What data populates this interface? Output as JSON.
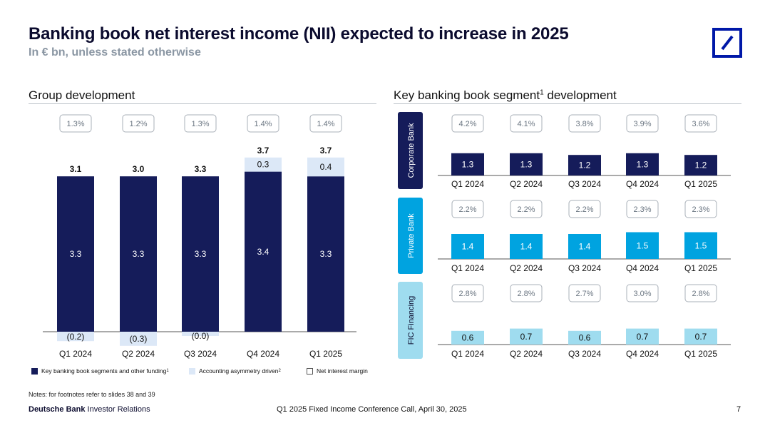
{
  "header": {
    "title": "Banking book net interest income (NII) expected to increase in 2025",
    "subtitle": "In € bn, unless stated otherwise"
  },
  "colors": {
    "navy": "#151c5a",
    "light": "#dce8f7",
    "corporate": "#151c5a",
    "private": "#00a3e0",
    "fic": "#9fdcef",
    "accent": "#00a3e0",
    "logo": "#0018a8"
  },
  "chart_data": [
    {
      "type": "bar",
      "title": "Group development",
      "categories": [
        "Q1 2024",
        "Q2 2024",
        "Q3 2024",
        "Q4 2024",
        "Q1 2025"
      ],
      "series": [
        {
          "name": "Key banking book segments and other funding",
          "values": [
            3.3,
            3.3,
            3.3,
            3.4,
            3.3
          ],
          "labels": [
            "3.3",
            "3.3",
            "3.3",
            "3.4",
            "3.3"
          ]
        },
        {
          "name": "Accounting asymmetry driven",
          "values": [
            -0.2,
            -0.3,
            -0.0,
            0.3,
            0.4
          ],
          "labels": [
            "(0.2)",
            "(0.3)",
            "(0.0)",
            "0.3",
            "0.4"
          ]
        }
      ],
      "totals": [
        "3.1",
        "3.0",
        "3.3",
        "3.7",
        "3.7"
      ],
      "net_interest_margin": [
        "1.3%",
        "1.2%",
        "1.3%",
        "1.4%",
        "1.4%"
      ],
      "legend": [
        {
          "label": "Key banking book segments and other funding",
          "sup": "1"
        },
        {
          "label": "Accounting asymmetry driven",
          "sup": "2"
        },
        {
          "label": "Net interest margin",
          "sup": ""
        }
      ],
      "legend_position": "bottom"
    },
    {
      "type": "bar",
      "title": "Key banking book segment",
      "title_sup": "1",
      "title_suffix": " development",
      "categories": [
        "Q1 2024",
        "Q2 2024",
        "Q3 2024",
        "Q4 2024",
        "Q1 2025"
      ],
      "segments": [
        {
          "name": "Corporate Bank",
          "values": [
            1.3,
            1.3,
            1.2,
            1.3,
            1.2
          ],
          "labels": [
            "1.3",
            "1.3",
            "1.2",
            "1.3",
            "1.2"
          ],
          "margins": [
            "4.2%",
            "4.1%",
            "3.8%",
            "3.9%",
            "3.6%"
          ]
        },
        {
          "name": "Private Bank",
          "values": [
            1.4,
            1.4,
            1.4,
            1.5,
            1.5
          ],
          "labels": [
            "1.4",
            "1.4",
            "1.4",
            "1.5",
            "1.5"
          ],
          "margins": [
            "2.2%",
            "2.2%",
            "2.2%",
            "2.3%",
            "2.3%"
          ]
        },
        {
          "name": "FIC Financing",
          "values": [
            0.6,
            0.7,
            0.6,
            0.7,
            0.7
          ],
          "labels": [
            "0.6",
            "0.7",
            "0.6",
            "0.7",
            "0.7"
          ],
          "margins": [
            "2.8%",
            "2.8%",
            "2.7%",
            "3.0%",
            "2.8%"
          ]
        }
      ]
    }
  ],
  "footer": {
    "notes": "Notes: for footnotes refer to slides 38 and 39",
    "brand_bold": "Deutsche Bank",
    "brand_rest": " Investor Relations",
    "event": "Q1 2025 Fixed Income Conference Call, April 30, 2025",
    "page": "7"
  }
}
